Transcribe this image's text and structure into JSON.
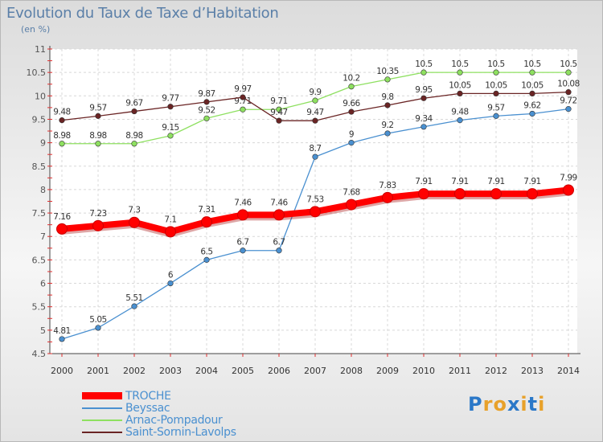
{
  "title": "Evolution du Taux de Taxe d’Habitation",
  "subtitle": "(en %)",
  "logo_text": "Proxiti",
  "logo_colors": [
    "#2b78c8",
    "#e8a12a",
    "#e8a12a",
    "#2b78c8",
    "#e8a12a",
    "#2b78c8",
    "#e8a12a"
  ],
  "chart_data": {
    "type": "line",
    "x": [
      2000,
      2001,
      2002,
      2003,
      2004,
      2005,
      2006,
      2007,
      2008,
      2009,
      2010,
      2011,
      2012,
      2013,
      2014
    ],
    "xlabel": "",
    "ylabel": "",
    "ylim": [
      4.5,
      11
    ],
    "yticks": [
      "4.5",
      "5",
      "5.5",
      "6",
      "6.5",
      "7",
      "7.5",
      "8",
      "8.5",
      "9",
      "9.5",
      "10",
      "10.5",
      "11"
    ],
    "grid": true,
    "legend_position": "bottom-left",
    "series": [
      {
        "name": "TROCHE",
        "color": "#ff0000",
        "values": [
          7.16,
          7.23,
          7.3,
          7.1,
          7.31,
          7.46,
          7.46,
          7.53,
          7.68,
          7.83,
          7.91,
          7.91,
          7.91,
          7.91,
          7.99
        ],
        "labels": [
          "7.16",
          "7.23",
          "7.3",
          "7.1",
          "7.31",
          "7.46",
          "7.46",
          "7.53",
          "7.68",
          "7.83",
          "7.91",
          "7.91",
          "7.91",
          "7.91",
          "7.99"
        ]
      },
      {
        "name": "Beyssac",
        "color": "#4a90d0",
        "values": [
          4.81,
          5.05,
          5.51,
          6,
          6.5,
          6.7,
          6.7,
          8.7,
          9,
          9.2,
          9.34,
          9.48,
          9.57,
          9.62,
          9.72
        ],
        "labels": [
          "4.81",
          "5.05",
          "5.51",
          "6",
          "6.5",
          "6.7",
          "6.7",
          "8.7",
          "9",
          "9.2",
          "9.34",
          "9.48",
          "9.57",
          "9.62",
          "9.72"
        ]
      },
      {
        "name": "Arnac-Pompadour",
        "color": "#8ee060",
        "values": [
          8.98,
          8.98,
          8.98,
          9.15,
          9.52,
          9.71,
          9.71,
          9.9,
          10.2,
          10.35,
          10.5,
          10.5,
          10.5,
          10.5,
          10.5
        ],
        "labels": [
          "8.98",
          "8.98",
          "8.98",
          "9.15",
          "9.52",
          "9.71",
          "9.71",
          "9.9",
          "10.2",
          "10.35",
          "10.5",
          "10.5",
          "10.5",
          "10.5",
          "10.5"
        ]
      },
      {
        "name": "Saint-Sornin-Lavolps",
        "color": "#6a2424",
        "values": [
          9.48,
          9.57,
          9.67,
          9.77,
          9.87,
          9.97,
          9.47,
          9.47,
          9.66,
          9.8,
          9.95,
          10.05,
          10.05,
          10.05,
          10.08
        ],
        "labels": [
          "9.48",
          "9.57",
          "9.67",
          "9.77",
          "9.87",
          "9.97",
          "9.47",
          "9.47",
          "9.66",
          "9.8",
          "9.95",
          "10.05",
          "10.05",
          "10.05",
          "10.08"
        ]
      }
    ]
  }
}
